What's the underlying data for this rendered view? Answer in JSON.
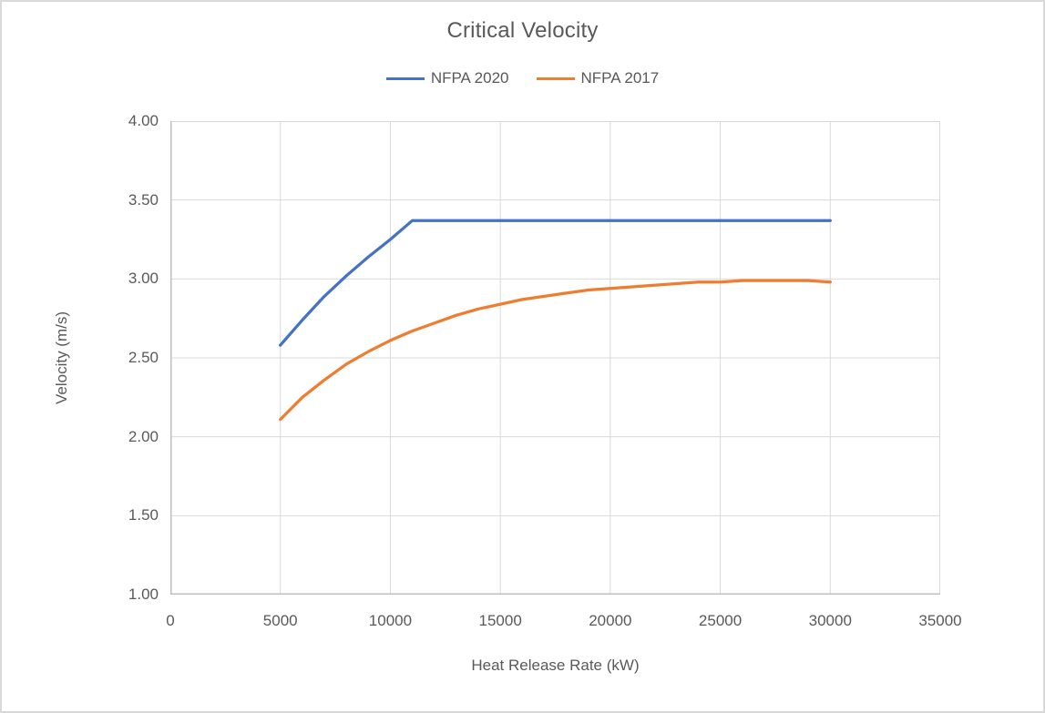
{
  "chart_data": {
    "type": "line",
    "title": "Critical Velocity",
    "xlabel": "Heat Release Rate (kW)",
    "ylabel": "Velocity (m/s)",
    "xlim": [
      0,
      35000
    ],
    "ylim": [
      1.0,
      4.0
    ],
    "grid": true,
    "legend_position": "top",
    "x_ticks": [
      0,
      5000,
      10000,
      15000,
      20000,
      25000,
      30000,
      35000
    ],
    "x_tick_labels": [
      "0",
      "5000",
      "10000",
      "15000",
      "20000",
      "25000",
      "30000",
      "35000"
    ],
    "y_ticks": [
      1.0,
      1.5,
      2.0,
      2.5,
      3.0,
      3.5,
      4.0
    ],
    "y_tick_labels": [
      "1.00",
      "1.50",
      "2.00",
      "2.50",
      "3.00",
      "3.50",
      "4.00"
    ],
    "series": [
      {
        "name": "NFPA 2020",
        "color": "#4472C4",
        "points": [
          [
            5000,
            2.58
          ],
          [
            6000,
            2.74
          ],
          [
            7000,
            2.89
          ],
          [
            8000,
            3.02
          ],
          [
            9000,
            3.14
          ],
          [
            10000,
            3.25
          ],
          [
            11000,
            3.37
          ],
          [
            12000,
            3.37
          ],
          [
            13000,
            3.37
          ],
          [
            14000,
            3.37
          ],
          [
            15000,
            3.37
          ],
          [
            16000,
            3.37
          ],
          [
            17000,
            3.37
          ],
          [
            18000,
            3.37
          ],
          [
            19000,
            3.37
          ],
          [
            20000,
            3.37
          ],
          [
            21000,
            3.37
          ],
          [
            22000,
            3.37
          ],
          [
            23000,
            3.37
          ],
          [
            24000,
            3.37
          ],
          [
            25000,
            3.37
          ],
          [
            26000,
            3.37
          ],
          [
            27000,
            3.37
          ],
          [
            28000,
            3.37
          ],
          [
            29000,
            3.37
          ],
          [
            30000,
            3.37
          ]
        ]
      },
      {
        "name": "NFPA 2017",
        "color": "#ED7D31",
        "points": [
          [
            5000,
            2.11
          ],
          [
            6000,
            2.25
          ],
          [
            7000,
            2.36
          ],
          [
            8000,
            2.46
          ],
          [
            9000,
            2.54
          ],
          [
            10000,
            2.61
          ],
          [
            11000,
            2.67
          ],
          [
            12000,
            2.72
          ],
          [
            13000,
            2.77
          ],
          [
            14000,
            2.81
          ],
          [
            15000,
            2.84
          ],
          [
            16000,
            2.87
          ],
          [
            17000,
            2.89
          ],
          [
            18000,
            2.91
          ],
          [
            19000,
            2.93
          ],
          [
            20000,
            2.94
          ],
          [
            21000,
            2.95
          ],
          [
            22000,
            2.96
          ],
          [
            23000,
            2.97
          ],
          [
            24000,
            2.98
          ],
          [
            25000,
            2.98
          ],
          [
            26000,
            2.99
          ],
          [
            27000,
            2.99
          ],
          [
            28000,
            2.99
          ],
          [
            29000,
            2.99
          ],
          [
            30000,
            2.98
          ]
        ]
      }
    ],
    "colors": {
      "text": "#595959",
      "gridline": "#D9D9D9",
      "axis_line": "#BFBFBF",
      "background": "#FFFFFF",
      "frame_border": "#D9D9D9"
    }
  }
}
